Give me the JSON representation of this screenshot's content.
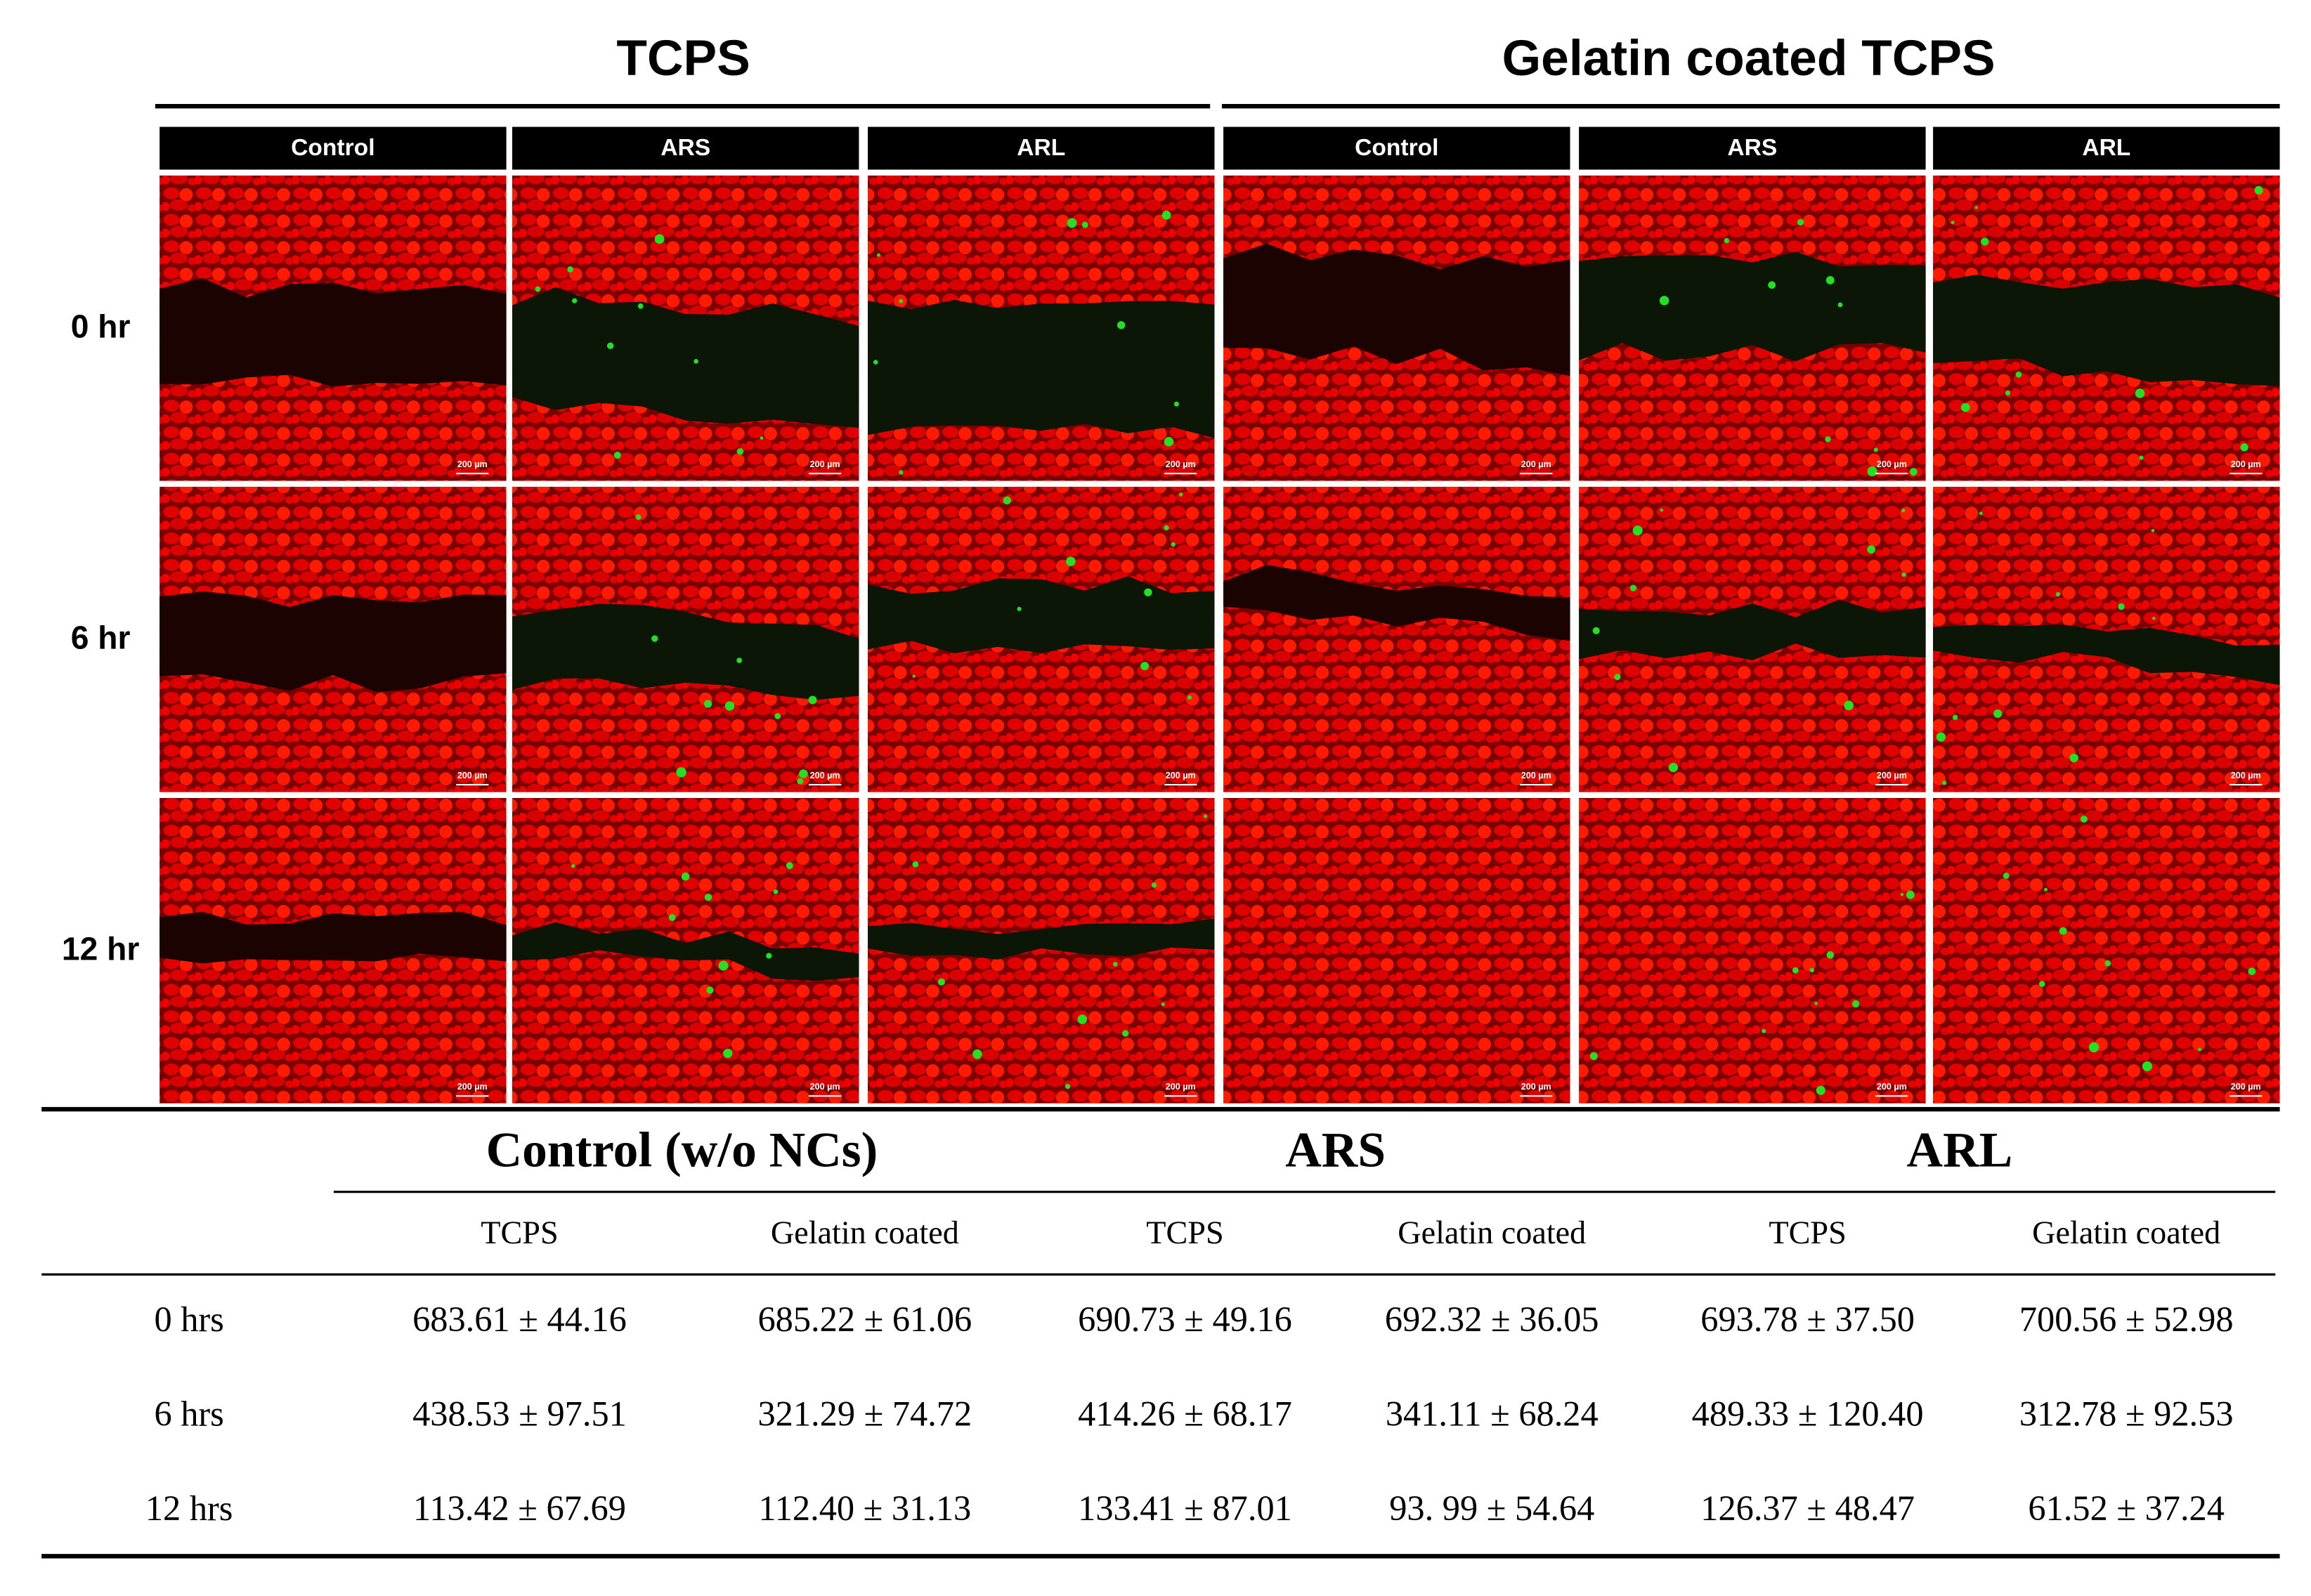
{
  "figure": {
    "groups": [
      "TCPS",
      "Gelatin coated TCPS"
    ],
    "columns": [
      "Control",
      "ARS",
      "ARL",
      "Control",
      "ARS",
      "ARL"
    ],
    "rows": [
      "0 hr",
      "6 hr",
      "12 hr"
    ],
    "scale_bar": "200 µm"
  },
  "table": {
    "groups": [
      "Control (w/o NCs)",
      "ARS",
      "ARL"
    ],
    "subheaders": [
      "TCPS",
      "Gelatin coated",
      "TCPS",
      "Gelatin coated",
      "TCPS",
      "Gelatin coated"
    ],
    "rows": [
      [
        "0 hrs",
        "683.61 ± 44.16",
        "685.22 ± 61.06",
        "690.73 ± 49.16",
        "692.32 ± 36.05",
        "693.78 ± 37.50",
        "700.56 ± 52.98"
      ],
      [
        "6 hrs",
        "438.53 ± 97.51",
        "321.29 ± 74.72",
        "414.26 ± 68.17",
        "341.11 ± 68.24",
        "489.33 ± 120.40",
        "312.78 ± 92.53"
      ],
      [
        "12 hrs",
        "113.42 ± 67.69",
        "112.40 ± 31.13",
        "133.41 ± 87.01",
        "93. 99 ± 54.64",
        "126.37 ± 48.47",
        "61.52 ± 37.24"
      ]
    ]
  }
}
